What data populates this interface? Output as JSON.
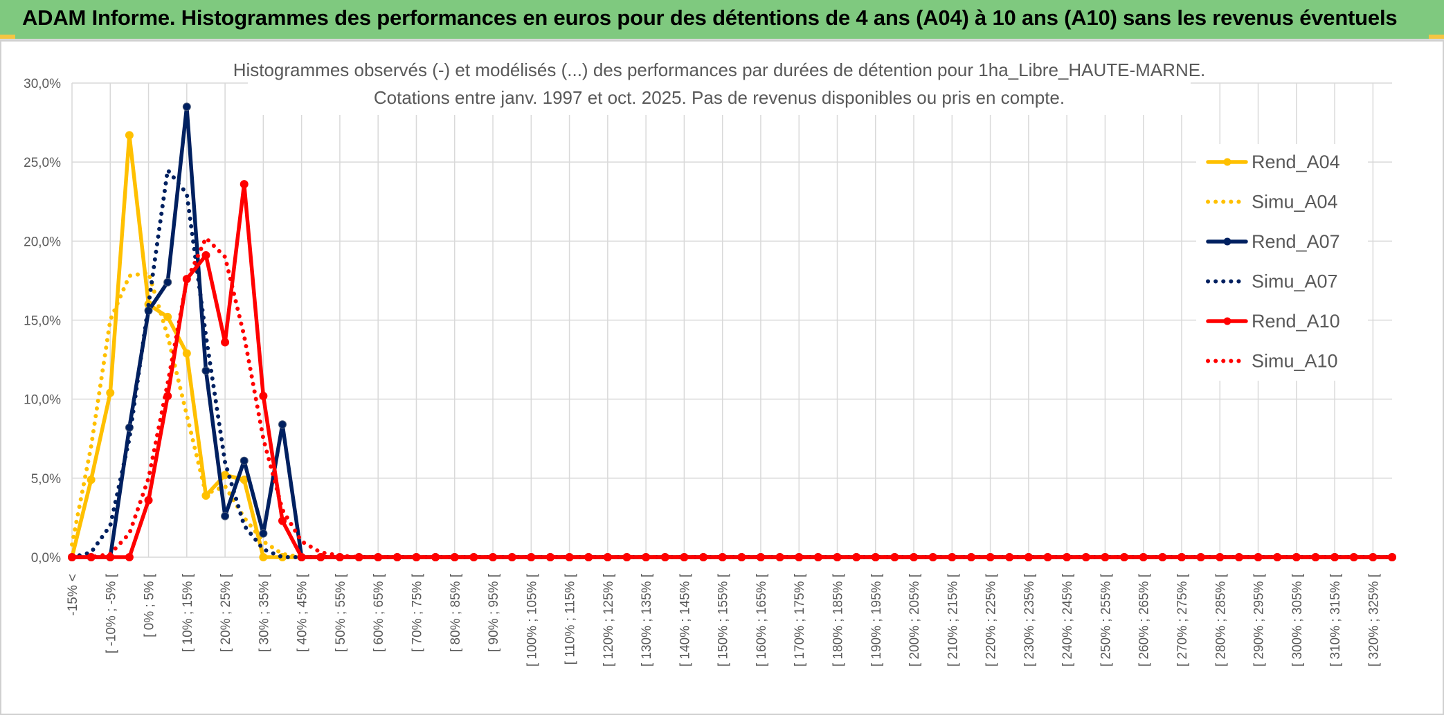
{
  "header": {
    "title": "ADAM Informe. Histogrammes des performances en euros pour des détentions de 4 ans (A04) à 10 ans (A10) sans les revenus éventuels"
  },
  "colors": {
    "A04": "#ffc000",
    "A07": "#002060",
    "A10": "#ff0000",
    "grid": "#d9d9d9",
    "header_bg": "#7fc97f"
  },
  "chart_data": {
    "type": "line",
    "title_lines": [
      "Histogrammes observés (-) et modélisés (...) des performances par durées de détention pour 1ha_Libre_HAUTE-MARNE.",
      "Cotations entre janv. 1997 et oct. 2025. Pas de revenus disponibles ou pris en compte."
    ],
    "ylim": [
      0,
      30
    ],
    "y_ticks": [
      "0,0%",
      "5,0%",
      "10,0%",
      "15,0%",
      "20,0%",
      "25,0%",
      "30,0%"
    ],
    "x_labels": [
      "-15% <",
      "[ -10% ; -5% [",
      "[ 0% ; 5% [",
      "[ 10% ; 15% [",
      "[ 20% ; 25% [",
      "[ 30% ; 35% [",
      "[ 40% ; 45% [",
      "[ 50% ; 55% [",
      "[ 60% ; 65% [",
      "[ 70% ; 75% [",
      "[ 80% ; 85% [",
      "[ 90% ; 95% [",
      "[ 100% ; 105% [",
      "[ 110% ; 115% [",
      "[ 120% ; 125% [",
      "[ 130% ; 135% [",
      "[ 140% ; 145% [",
      "[ 150% ; 155% [",
      "[ 160% ; 165% [",
      "[ 170% ; 175% [",
      "[ 180% ; 185% [",
      "[ 190% ; 195% [",
      "[ 200% ; 205% [",
      "[ 210% ; 215% [",
      "[ 220% ; 225% [",
      "[ 230% ; 235% [",
      "[ 240% ; 245% [",
      "[ 250% ; 255% [",
      "[ 260% ; 265% [",
      "[ 270% ; 275% [",
      "[ 280% ; 285% [",
      "[ 290% ; 295% [",
      "[ 300% ; 305% [",
      "[ 310% ; 315% [",
      "[ 320% ; 325% ["
    ],
    "category_count": 70,
    "grid": true,
    "legend_position": "right",
    "series": [
      {
        "name": "Rend_A04",
        "color": "#ffc000",
        "style": "solid",
        "markers": true,
        "values": [
          0,
          4.9,
          10.4,
          26.7,
          16.0,
          15.2,
          12.9,
          3.9,
          5.2,
          4.9,
          0,
          0,
          0,
          0,
          0,
          0,
          0,
          0,
          0,
          0,
          0,
          0,
          0,
          0,
          0,
          0,
          0,
          0,
          0,
          0,
          0,
          0,
          0,
          0,
          0,
          0,
          0,
          0,
          0,
          0,
          0,
          0,
          0,
          0,
          0,
          0,
          0,
          0,
          0,
          0,
          0,
          0,
          0,
          0,
          0,
          0,
          0,
          0,
          0,
          0,
          0,
          0,
          0,
          0,
          0,
          0,
          0,
          0,
          0,
          0
        ]
      },
      {
        "name": "Simu_A04",
        "color": "#ffc000",
        "style": "dotted",
        "markers": false,
        "values": [
          0.8,
          7.0,
          15.0,
          17.8,
          18.0,
          14.0,
          9.0,
          4.0,
          4.5,
          2.5,
          1.0,
          0.2,
          0,
          0,
          0,
          0,
          0,
          0,
          0,
          0,
          0,
          0,
          0,
          0,
          0,
          0,
          0,
          0,
          0,
          0,
          0,
          0,
          0,
          0,
          0,
          0,
          0,
          0,
          0,
          0,
          0,
          0,
          0,
          0,
          0,
          0,
          0,
          0,
          0,
          0,
          0,
          0,
          0,
          0,
          0,
          0,
          0,
          0,
          0,
          0,
          0,
          0,
          0,
          0,
          0,
          0,
          0,
          0,
          0,
          0
        ]
      },
      {
        "name": "Rend_A07",
        "color": "#002060",
        "style": "solid",
        "markers": true,
        "values": [
          0,
          0,
          0,
          8.2,
          15.6,
          17.4,
          28.5,
          11.8,
          2.6,
          6.1,
          1.5,
          8.4,
          0,
          0,
          0,
          0,
          0,
          0,
          0,
          0,
          0,
          0,
          0,
          0,
          0,
          0,
          0,
          0,
          0,
          0,
          0,
          0,
          0,
          0,
          0,
          0,
          0,
          0,
          0,
          0,
          0,
          0,
          0,
          0,
          0,
          0,
          0,
          0,
          0,
          0,
          0,
          0,
          0,
          0,
          0,
          0,
          0,
          0,
          0,
          0,
          0,
          0,
          0,
          0,
          0,
          0,
          0,
          0,
          0,
          0
        ]
      },
      {
        "name": "Simu_A07",
        "color": "#002060",
        "style": "dotted",
        "markers": false,
        "values": [
          0,
          0.3,
          2.0,
          7.5,
          16.0,
          24.5,
          23.0,
          14.0,
          6.0,
          2.0,
          0.5,
          0,
          0,
          0,
          0,
          0,
          0,
          0,
          0,
          0,
          0,
          0,
          0,
          0,
          0,
          0,
          0,
          0,
          0,
          0,
          0,
          0,
          0,
          0,
          0,
          0,
          0,
          0,
          0,
          0,
          0,
          0,
          0,
          0,
          0,
          0,
          0,
          0,
          0,
          0,
          0,
          0,
          0,
          0,
          0,
          0,
          0,
          0,
          0,
          0,
          0,
          0,
          0,
          0,
          0,
          0,
          0,
          0,
          0,
          0
        ]
      },
      {
        "name": "Rend_A10",
        "color": "#ff0000",
        "style": "solid",
        "markers": true,
        "values": [
          0,
          0,
          0,
          0,
          3.6,
          10.2,
          17.6,
          19.1,
          13.6,
          23.6,
          10.2,
          2.3,
          0,
          0,
          0,
          0,
          0,
          0,
          0,
          0,
          0,
          0,
          0,
          0,
          0,
          0,
          0,
          0,
          0,
          0,
          0,
          0,
          0,
          0,
          0,
          0,
          0,
          0,
          0,
          0,
          0,
          0,
          0,
          0,
          0,
          0,
          0,
          0,
          0,
          0,
          0,
          0,
          0,
          0,
          0,
          0,
          0,
          0,
          0,
          0,
          0,
          0,
          0,
          0,
          0,
          0,
          0,
          0,
          0,
          0
        ]
      },
      {
        "name": "Simu_A10",
        "color": "#ff0000",
        "style": "dotted",
        "markers": false,
        "values": [
          0,
          0,
          0.2,
          1.5,
          5.0,
          11.0,
          17.5,
          20.2,
          19.0,
          14.0,
          7.5,
          3.0,
          1.0,
          0.3,
          0.1,
          0,
          0,
          0,
          0,
          0,
          0,
          0,
          0,
          0,
          0,
          0,
          0,
          0,
          0,
          0,
          0,
          0,
          0,
          0,
          0,
          0,
          0,
          0,
          0,
          0,
          0,
          0,
          0,
          0,
          0,
          0,
          0,
          0,
          0,
          0,
          0,
          0,
          0,
          0,
          0,
          0,
          0,
          0,
          0,
          0,
          0,
          0,
          0,
          0,
          0,
          0,
          0,
          0,
          0,
          0
        ]
      }
    ]
  }
}
